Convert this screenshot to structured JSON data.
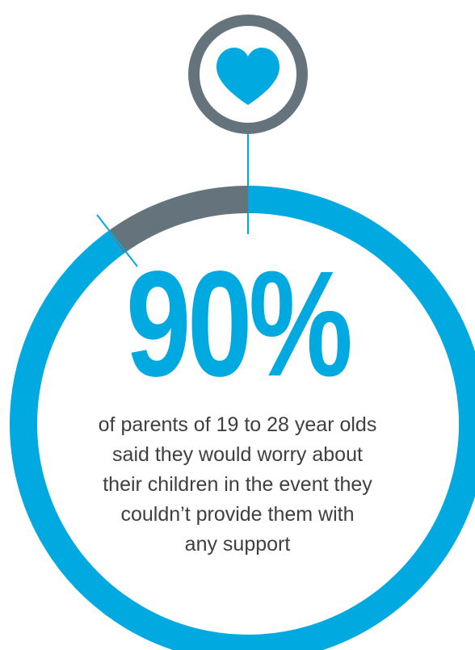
{
  "chart_data": {
    "type": "pie",
    "values": [
      90,
      10
    ],
    "stat": "90%",
    "caption_lines": [
      "of parents of 19 to 28 year olds",
      "said they would worry about",
      "their children in the event they",
      "couldn’t provide them with",
      "any support"
    ]
  },
  "colors": {
    "accent": "#00a9e0",
    "remainder": "#65737c",
    "text": "#3f3f3f"
  },
  "icons": {
    "badge": "heart-icon"
  }
}
